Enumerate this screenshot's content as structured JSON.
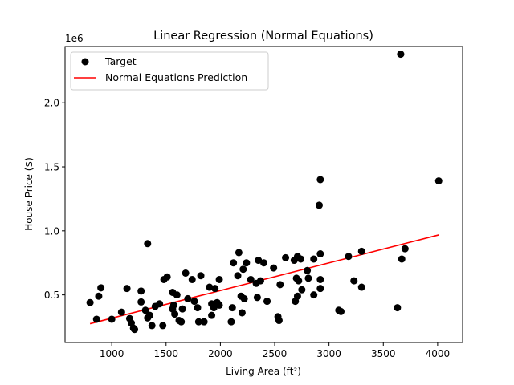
{
  "chart_data": {
    "type": "scatter",
    "title": "Linear Regression (Normal Equations)",
    "xlabel": "Living Area (ft²)",
    "ylabel": "House Price ($)",
    "y_offset_label": "1e6",
    "xlim": [
      570,
      4230
    ],
    "ylim": [
      0.128,
      2.44
    ],
    "x_ticks": [
      1000,
      1500,
      2000,
      2500,
      3000,
      3500,
      4000
    ],
    "y_ticks": [
      0.5,
      1.0,
      1.5,
      2.0
    ],
    "x_tick_labels": [
      "1000",
      "1500",
      "2000",
      "2500",
      "3000",
      "3500",
      "4000"
    ],
    "y_tick_labels": [
      "0.5",
      "1.0",
      "1.5",
      "2.0"
    ],
    "grid": false,
    "legend": {
      "position": "top-left",
      "entries": [
        "Target",
        "Normal Equations Prediction"
      ]
    },
    "series": [
      {
        "name": "Target",
        "kind": "scatter",
        "color": "#000000",
        "points": [
          [
            800,
            0.44
          ],
          [
            860,
            0.31
          ],
          [
            880,
            0.49
          ],
          [
            900,
            0.555
          ],
          [
            1000,
            0.31
          ],
          [
            1090,
            0.365
          ],
          [
            1140,
            0.55
          ],
          [
            1165,
            0.315
          ],
          [
            1180,
            0.28
          ],
          [
            1200,
            0.24
          ],
          [
            1210,
            0.23
          ],
          [
            1270,
            0.53
          ],
          [
            1270,
            0.445
          ],
          [
            1310,
            0.38
          ],
          [
            1330,
            0.9
          ],
          [
            1330,
            0.32
          ],
          [
            1350,
            0.34
          ],
          [
            1370,
            0.26
          ],
          [
            1400,
            0.41
          ],
          [
            1440,
            0.43
          ],
          [
            1470,
            0.26
          ],
          [
            1480,
            0.62
          ],
          [
            1510,
            0.64
          ],
          [
            1560,
            0.52
          ],
          [
            1560,
            0.39
          ],
          [
            1570,
            0.42
          ],
          [
            1580,
            0.35
          ],
          [
            1600,
            0.5
          ],
          [
            1620,
            0.3
          ],
          [
            1640,
            0.29
          ],
          [
            1650,
            0.39
          ],
          [
            1680,
            0.67
          ],
          [
            1700,
            0.47
          ],
          [
            1740,
            0.62
          ],
          [
            1760,
            0.45
          ],
          [
            1790,
            0.4
          ],
          [
            1800,
            0.29
          ],
          [
            1820,
            0.65
          ],
          [
            1850,
            0.29
          ],
          [
            1900,
            0.56
          ],
          [
            1920,
            0.43
          ],
          [
            1920,
            0.34
          ],
          [
            1940,
            0.4
          ],
          [
            1950,
            0.55
          ],
          [
            1970,
            0.44
          ],
          [
            1990,
            0.62
          ],
          [
            1990,
            0.42
          ],
          [
            2100,
            0.29
          ],
          [
            2110,
            0.4
          ],
          [
            2120,
            0.75
          ],
          [
            2160,
            0.65
          ],
          [
            2170,
            0.83
          ],
          [
            2190,
            0.49
          ],
          [
            2200,
            0.36
          ],
          [
            2210,
            0.7
          ],
          [
            2220,
            0.47
          ],
          [
            2240,
            0.75
          ],
          [
            2280,
            0.62
          ],
          [
            2330,
            0.59
          ],
          [
            2340,
            0.48
          ],
          [
            2350,
            0.77
          ],
          [
            2370,
            0.61
          ],
          [
            2400,
            0.75
          ],
          [
            2430,
            0.45
          ],
          [
            2490,
            0.71
          ],
          [
            2530,
            0.33
          ],
          [
            2540,
            0.3
          ],
          [
            2550,
            0.58
          ],
          [
            2600,
            0.79
          ],
          [
            2680,
            0.77
          ],
          [
            2690,
            0.45
          ],
          [
            2700,
            0.63
          ],
          [
            2710,
            0.8
          ],
          [
            2710,
            0.49
          ],
          [
            2720,
            0.61
          ],
          [
            2740,
            0.78
          ],
          [
            2750,
            0.54
          ],
          [
            2800,
            0.69
          ],
          [
            2810,
            0.63
          ],
          [
            2860,
            0.78
          ],
          [
            2860,
            0.5
          ],
          [
            2910,
            1.2
          ],
          [
            2920,
            1.4
          ],
          [
            2920,
            0.82
          ],
          [
            2920,
            0.62
          ],
          [
            2920,
            0.55
          ],
          [
            3090,
            0.38
          ],
          [
            3110,
            0.37
          ],
          [
            3180,
            0.8
          ],
          [
            3230,
            0.61
          ],
          [
            3300,
            0.84
          ],
          [
            3300,
            0.56
          ],
          [
            3630,
            0.4
          ],
          [
            3660,
            2.38
          ],
          [
            3670,
            0.78
          ],
          [
            3700,
            0.86
          ],
          [
            4010,
            1.39
          ]
        ]
      },
      {
        "name": "Normal Equations Prediction",
        "kind": "line",
        "color": "#ff0000",
        "points": [
          [
            800,
            0.275
          ],
          [
            4010,
            0.968
          ]
        ]
      }
    ]
  }
}
